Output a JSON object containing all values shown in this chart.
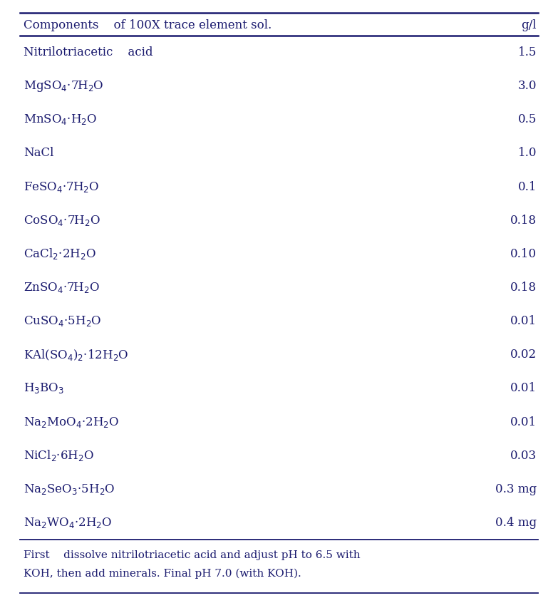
{
  "title_col1": "Components    of 100X trace element sol.",
  "title_col2": "g/l",
  "rows": [
    {
      "compound": "Nitrilotriacetic    acid",
      "value": "1.5"
    },
    {
      "compound": "MgSO$_4$·7H$_2$O",
      "value": "3.0"
    },
    {
      "compound": "MnSO$_4$·H$_2$O",
      "value": "0.5"
    },
    {
      "compound": "NaCl",
      "value": "1.0"
    },
    {
      "compound": "FeSO$_4$·7H$_2$O",
      "value": "0.1"
    },
    {
      "compound": "CoSO$_4$·7H$_2$O",
      "value": "0.18"
    },
    {
      "compound": "CaCl$_2$·2H$_2$O",
      "value": "0.10"
    },
    {
      "compound": "ZnSO$_4$·7H$_2$O",
      "value": "0.18"
    },
    {
      "compound": "CuSO$_4$·5H$_2$O",
      "value": "0.01"
    },
    {
      "compound": "KAl(SO$_4$)$_2$·12H$_2$O",
      "value": "0.02"
    },
    {
      "compound": "H$_3$BO$_3$",
      "value": "0.01"
    },
    {
      "compound": "Na$_2$MoO$_4$·2H$_2$O",
      "value": "0.01"
    },
    {
      "compound": "NiCl$_2$·6H$_2$O",
      "value": "0.03"
    },
    {
      "compound": "Na$_2$SeO$_3$·5H$_2$O",
      "value": "0.3 mg"
    },
    {
      "compound": "Na$_2$WO$_4$·2H$_2$O",
      "value": "0.4 mg"
    }
  ],
  "footnote_line1": "First    dissolve nitrilotriacetic acid and adjust pH to 6.5 with",
  "footnote_line2": "KOH, then add minerals. Final pH 7.0 (with KOH).",
  "bg_color": "#ffffff",
  "text_color": "#1a1a6e",
  "line_color": "#1a1a6e",
  "font_size": 12,
  "title_font_size": 12,
  "footnote_font_size": 11,
  "fig_width": 7.83,
  "fig_height": 8.46,
  "dpi": 100
}
